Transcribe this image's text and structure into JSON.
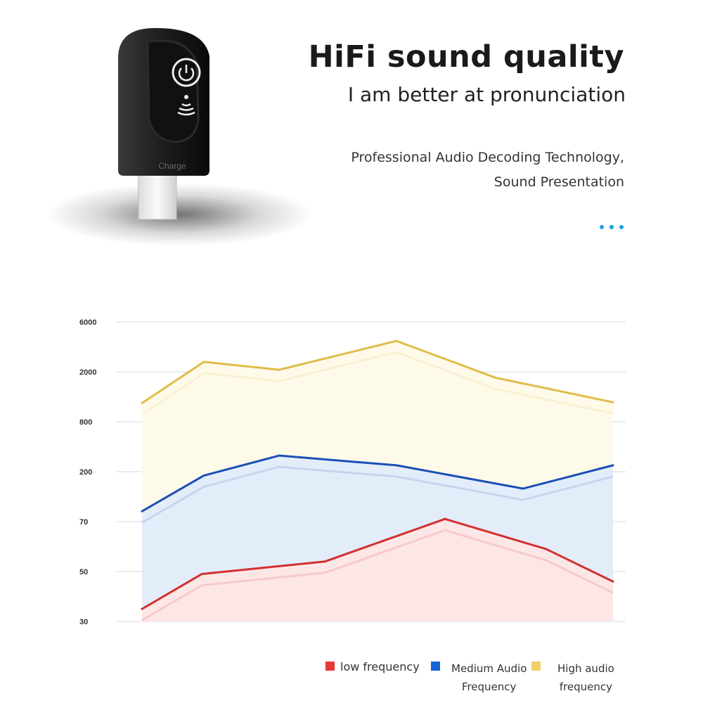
{
  "header": {
    "title": "HiFi sound quality",
    "subtitle": "I am better at pronunciation",
    "description_line1": "Professional Audio Decoding Technology,",
    "description_line2": "Sound Presentation",
    "dots_color": "#1ea0e6"
  },
  "product": {
    "label": "Charge",
    "icons": [
      "power-icon",
      "wireless-signal-icon"
    ]
  },
  "chart_data": {
    "type": "area",
    "title": "",
    "xlabel": "",
    "ylabel": "",
    "y_ticks": [
      "6000",
      "2000",
      "800",
      "200",
      "70",
      "50",
      "30"
    ],
    "y_scale": "non-linear (equally spaced tick labels)",
    "grid": true,
    "legend_placement": "bottom-right",
    "series": [
      {
        "name": "low frequency",
        "color": "#d32f2f",
        "fill": "#fde6e6",
        "values": [
          35,
          49,
          54,
          77,
          59,
          46
        ]
      },
      {
        "name": "Medium Audio Frequency",
        "name_line1": "Medium Audio",
        "name_line2": "Frequency",
        "color": "#1a4fb5",
        "fill": "#e3edfa",
        "values": [
          97,
          190,
          394,
          277,
          156,
          277
        ]
      },
      {
        "name": "High audio frequency",
        "name_line1": "High audio",
        "name_line2": "frequency",
        "color": "#e0bc4a",
        "fill": "#fefaea",
        "values": [
          1250,
          2800,
          2170,
          4480,
          1860,
          1270
        ]
      }
    ]
  }
}
